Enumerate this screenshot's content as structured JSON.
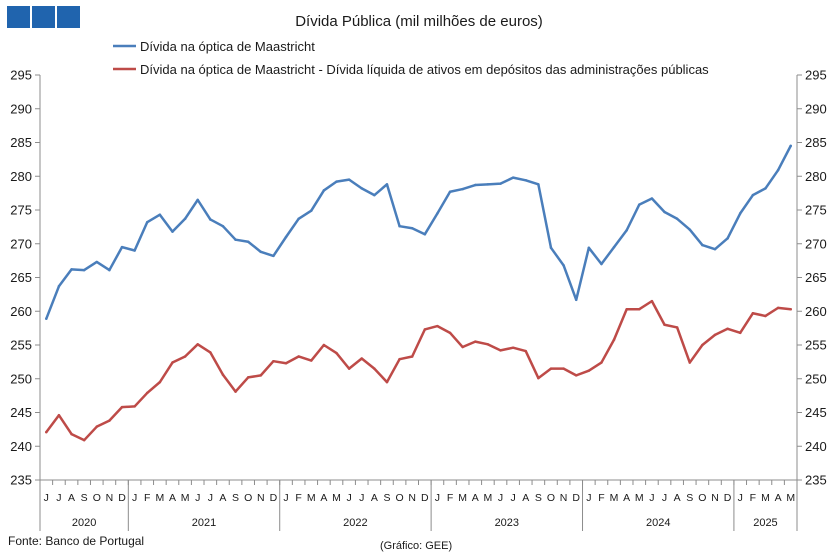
{
  "logo": {
    "icon": "three-squares-logo",
    "color": "#2064AE"
  },
  "chart_data": {
    "type": "line",
    "title": "Dívida Pública (mil milhões de euros)",
    "categories": [
      {
        "month": "J",
        "year": "2020"
      },
      {
        "month": "J",
        "year": "2020"
      },
      {
        "month": "A",
        "year": "2020"
      },
      {
        "month": "S",
        "year": "2020"
      },
      {
        "month": "O",
        "year": "2020"
      },
      {
        "month": "N",
        "year": "2020"
      },
      {
        "month": "D",
        "year": "2020"
      },
      {
        "month": "J",
        "year": "2021"
      },
      {
        "month": "F",
        "year": "2021"
      },
      {
        "month": "M",
        "year": "2021"
      },
      {
        "month": "A",
        "year": "2021"
      },
      {
        "month": "M",
        "year": "2021"
      },
      {
        "month": "J",
        "year": "2021"
      },
      {
        "month": "J",
        "year": "2021"
      },
      {
        "month": "A",
        "year": "2021"
      },
      {
        "month": "S",
        "year": "2021"
      },
      {
        "month": "O",
        "year": "2021"
      },
      {
        "month": "N",
        "year": "2021"
      },
      {
        "month": "D",
        "year": "2021"
      },
      {
        "month": "J",
        "year": "2022"
      },
      {
        "month": "F",
        "year": "2022"
      },
      {
        "month": "M",
        "year": "2022"
      },
      {
        "month": "A",
        "year": "2022"
      },
      {
        "month": "M",
        "year": "2022"
      },
      {
        "month": "J",
        "year": "2022"
      },
      {
        "month": "J",
        "year": "2022"
      },
      {
        "month": "A",
        "year": "2022"
      },
      {
        "month": "S",
        "year": "2022"
      },
      {
        "month": "O",
        "year": "2022"
      },
      {
        "month": "N",
        "year": "2022"
      },
      {
        "month": "D",
        "year": "2022"
      },
      {
        "month": "J",
        "year": "2023"
      },
      {
        "month": "F",
        "year": "2023"
      },
      {
        "month": "M",
        "year": "2023"
      },
      {
        "month": "A",
        "year": "2023"
      },
      {
        "month": "M",
        "year": "2023"
      },
      {
        "month": "J",
        "year": "2023"
      },
      {
        "month": "J",
        "year": "2023"
      },
      {
        "month": "A",
        "year": "2023"
      },
      {
        "month": "S",
        "year": "2023"
      },
      {
        "month": "O",
        "year": "2023"
      },
      {
        "month": "N",
        "year": "2023"
      },
      {
        "month": "D",
        "year": "2023"
      },
      {
        "month": "J",
        "year": "2024"
      },
      {
        "month": "F",
        "year": "2024"
      },
      {
        "month": "M",
        "year": "2024"
      },
      {
        "month": "A",
        "year": "2024"
      },
      {
        "month": "M",
        "year": "2024"
      },
      {
        "month": "J",
        "year": "2024"
      },
      {
        "month": "J",
        "year": "2024"
      },
      {
        "month": "A",
        "year": "2024"
      },
      {
        "month": "S",
        "year": "2024"
      },
      {
        "month": "O",
        "year": "2024"
      },
      {
        "month": "N",
        "year": "2024"
      },
      {
        "month": "D",
        "year": "2024"
      },
      {
        "month": "J",
        "year": "2025"
      },
      {
        "month": "F",
        "year": "2025"
      },
      {
        "month": "M",
        "year": "2025"
      },
      {
        "month": "A",
        "year": "2025"
      },
      {
        "month": "M",
        "year": "2025"
      }
    ],
    "series": [
      {
        "name": "Dívida na óptica de Maastricht",
        "color": "#4A7EBB",
        "values": [
          258.9,
          263.7,
          266.2,
          266.1,
          267.3,
          266.1,
          269.5,
          269.0,
          273.2,
          274.3,
          271.8,
          273.7,
          276.5,
          273.6,
          272.6,
          270.6,
          270.3,
          268.8,
          268.2,
          271.0,
          273.7,
          274.9,
          277.9,
          279.2,
          279.5,
          278.2,
          277.2,
          278.8,
          272.6,
          272.3,
          271.4,
          274.5,
          277.7,
          278.1,
          278.7,
          278.8,
          278.9,
          279.8,
          279.4,
          278.8,
          269.4,
          266.8,
          261.7,
          269.4,
          267.0,
          269.5,
          272.0,
          275.8,
          276.7,
          274.7,
          273.7,
          272.1,
          269.8,
          269.2,
          270.8,
          274.5,
          277.2,
          278.2,
          280.9,
          284.5
        ]
      },
      {
        "name": "Dívida na óptica de Maastricht - Dívida líquida de ativos em depósitos das administrações públicas",
        "color": "#BE4B48",
        "values": [
          242.1,
          244.6,
          241.8,
          240.9,
          242.9,
          243.8,
          245.8,
          245.9,
          247.9,
          249.5,
          252.4,
          253.3,
          255.1,
          253.9,
          250.6,
          248.1,
          250.2,
          250.5,
          252.6,
          252.3,
          253.3,
          252.7,
          255.0,
          253.8,
          251.5,
          253.0,
          251.5,
          249.5,
          252.9,
          253.3,
          257.3,
          257.8,
          256.8,
          254.7,
          255.5,
          255.1,
          254.2,
          254.6,
          254.1,
          250.1,
          251.5,
          251.5,
          250.5,
          251.2,
          252.4,
          255.8,
          260.3,
          260.3,
          261.5,
          258.0,
          257.6,
          252.4,
          255.0,
          256.5,
          257.4,
          256.8,
          259.7,
          259.3,
          260.5,
          260.3
        ]
      }
    ],
    "ylim": [
      235,
      295
    ],
    "yticks": [
      235,
      240,
      245,
      250,
      255,
      260,
      265,
      270,
      275,
      280,
      285,
      290,
      295
    ],
    "y_axis_mirrored": true,
    "grid": false,
    "legend_position": "top"
  },
  "footer": {
    "source": "Fonte: Banco de Portugal",
    "credit": "(Gráfico: GEE)"
  }
}
